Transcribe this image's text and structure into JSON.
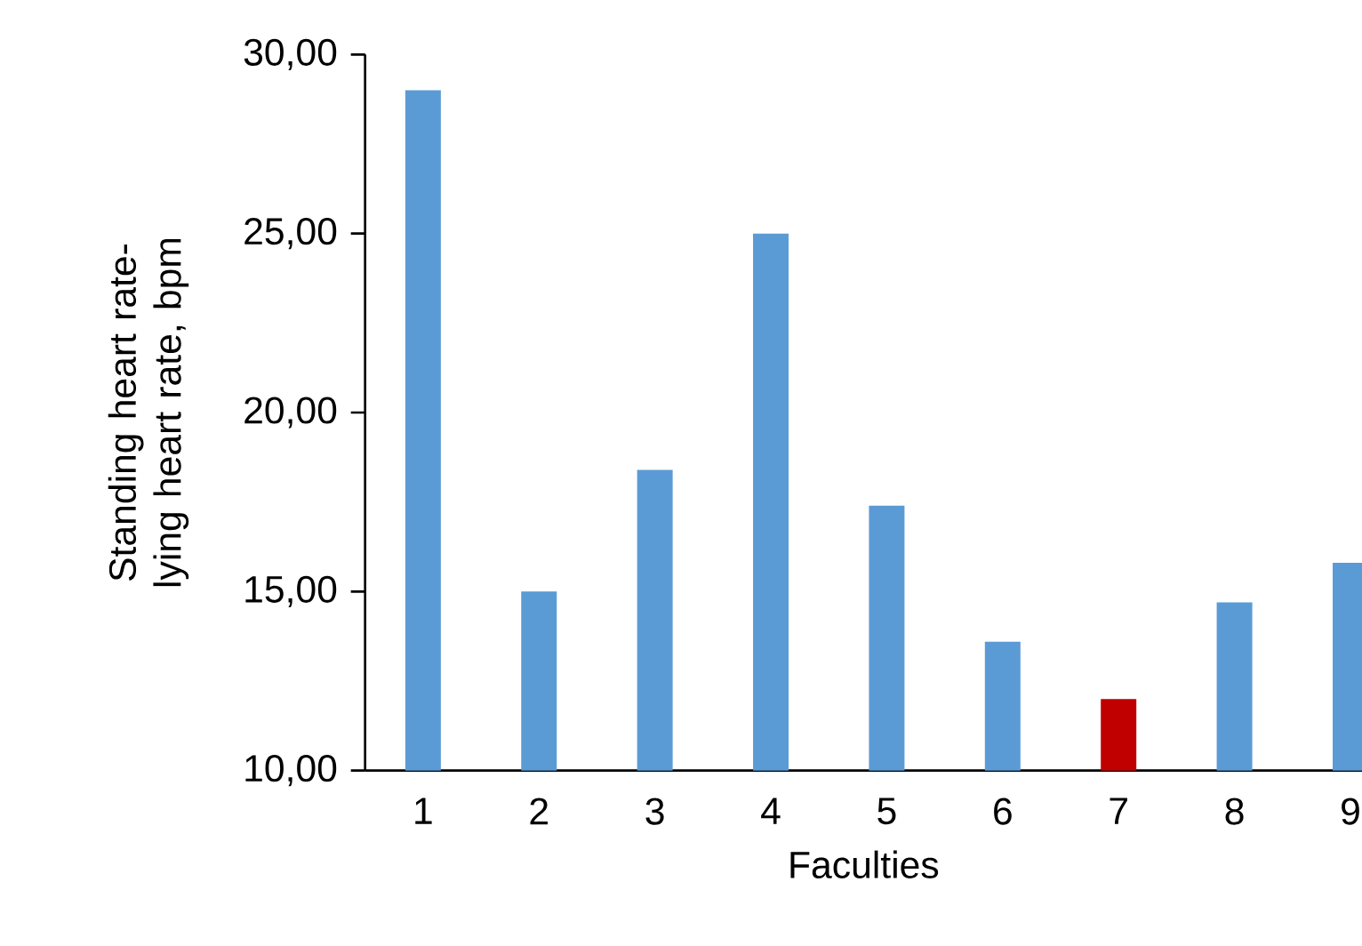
{
  "chart_data": {
    "type": "bar",
    "xlabel": "Faculties",
    "ylabel": "Standing heart rate-lying heart rate, bpm",
    "categories": [
      "1",
      "2",
      "3",
      "4",
      "5",
      "6",
      "7",
      "8",
      "9"
    ],
    "values": [
      29.0,
      15.0,
      18.4,
      25.0,
      17.4,
      13.6,
      12.0,
      14.7,
      15.8
    ],
    "colors": [
      "#5b9bd5",
      "#5b9bd5",
      "#5b9bd5",
      "#5b9bd5",
      "#5b9bd5",
      "#5b9bd5",
      "#c00000",
      "#5b9bd5",
      "#5b9bd5"
    ],
    "ylim": [
      10,
      30
    ],
    "yticks": [
      {
        "value": 10,
        "label": "10,00"
      },
      {
        "value": 15,
        "label": "15,00"
      },
      {
        "value": 20,
        "label": "20,00"
      },
      {
        "value": 25,
        "label": "25,00"
      },
      {
        "value": 30,
        "label": "30,00"
      }
    ],
    "grid": false
  }
}
